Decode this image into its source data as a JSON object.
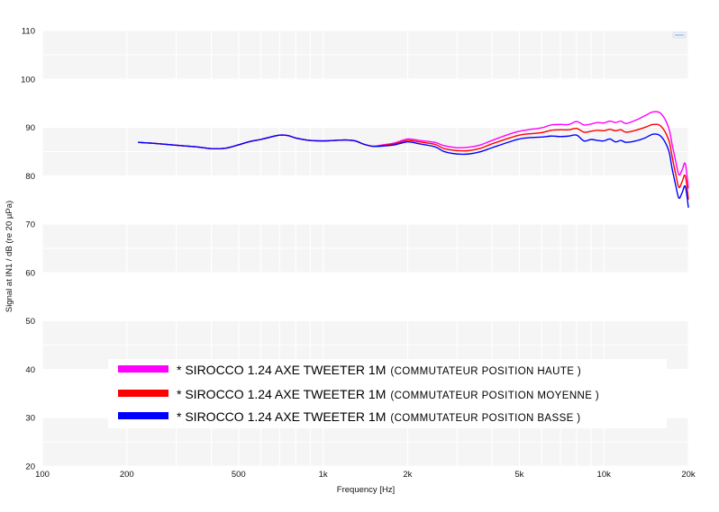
{
  "chart_data": {
    "type": "line",
    "title": "",
    "xlabel": "Frequency [Hz]",
    "ylabel": "Signal at IN1 / dB (re 20 µPa)",
    "xscale": "log",
    "xlim": [
      100,
      20000
    ],
    "ylim": [
      20,
      110
    ],
    "grid": true,
    "legend_position": "bottom-center",
    "x_ticks": [
      {
        "value": 100,
        "label": "100"
      },
      {
        "value": 200,
        "label": "200"
      },
      {
        "value": 500,
        "label": "500"
      },
      {
        "value": 1000,
        "label": "1k"
      },
      {
        "value": 2000,
        "label": "2k"
      },
      {
        "value": 5000,
        "label": "5k"
      },
      {
        "value": 10000,
        "label": "10k"
      },
      {
        "value": 20000,
        "label": "20k"
      }
    ],
    "y_ticks": [
      {
        "value": 20,
        "label": "20"
      },
      {
        "value": 30,
        "label": "30"
      },
      {
        "value": 40,
        "label": "40"
      },
      {
        "value": 50,
        "label": "50"
      },
      {
        "value": 60,
        "label": "60"
      },
      {
        "value": 70,
        "label": "70"
      },
      {
        "value": 80,
        "label": "80"
      },
      {
        "value": 90,
        "label": "90"
      },
      {
        "value": 100,
        "label": "100"
      },
      {
        "value": 110,
        "label": "110"
      }
    ],
    "series": [
      {
        "name": "* SIROCCO 1.24 AXE TWEETER 1M",
        "note": "(COMMUTATEUR POSITION HAUTE )",
        "color": "#ff00ff",
        "points": [
          [
            220,
            86.9
          ],
          [
            250,
            86.7
          ],
          [
            300,
            86.3
          ],
          [
            350,
            86.0
          ],
          [
            400,
            85.6
          ],
          [
            450,
            85.7
          ],
          [
            500,
            86.4
          ],
          [
            550,
            87.1
          ],
          [
            600,
            87.5
          ],
          [
            650,
            88.0
          ],
          [
            700,
            88.4
          ],
          [
            750,
            88.3
          ],
          [
            800,
            87.8
          ],
          [
            900,
            87.3
          ],
          [
            1000,
            87.2
          ],
          [
            1100,
            87.3
          ],
          [
            1200,
            87.4
          ],
          [
            1300,
            87.2
          ],
          [
            1400,
            86.5
          ],
          [
            1500,
            86.1
          ],
          [
            1600,
            86.3
          ],
          [
            1800,
            86.8
          ],
          [
            2000,
            87.6
          ],
          [
            2200,
            87.3
          ],
          [
            2500,
            86.9
          ],
          [
            2700,
            86.2
          ],
          [
            3000,
            85.8
          ],
          [
            3300,
            85.9
          ],
          [
            3600,
            86.3
          ],
          [
            4000,
            87.3
          ],
          [
            4500,
            88.4
          ],
          [
            5000,
            89.2
          ],
          [
            5500,
            89.6
          ],
          [
            6000,
            89.9
          ],
          [
            6500,
            90.5
          ],
          [
            7000,
            90.6
          ],
          [
            7500,
            90.6
          ],
          [
            8000,
            91.2
          ],
          [
            8500,
            90.5
          ],
          [
            9000,
            90.7
          ],
          [
            9500,
            91.0
          ],
          [
            10000,
            90.9
          ],
          [
            10500,
            91.3
          ],
          [
            11000,
            91.0
          ],
          [
            11500,
            91.3
          ],
          [
            12000,
            90.8
          ],
          [
            13000,
            91.5
          ],
          [
            14000,
            92.4
          ],
          [
            15000,
            93.2
          ],
          [
            16000,
            92.8
          ],
          [
            17000,
            90.0
          ],
          [
            17500,
            86.5
          ],
          [
            18000,
            83.2
          ],
          [
            18500,
            80.2
          ],
          [
            19000,
            81.2
          ],
          [
            19500,
            82.5
          ],
          [
            20000,
            77.5
          ]
        ]
      },
      {
        "name": "* SIROCCO 1.24 AXE TWEETER 1M",
        "note": "(COMMUTATEUR POSITION MOYENNE )",
        "color": "#ff0000",
        "points": [
          [
            220,
            86.9
          ],
          [
            250,
            86.7
          ],
          [
            300,
            86.3
          ],
          [
            350,
            86.0
          ],
          [
            400,
            85.6
          ],
          [
            450,
            85.7
          ],
          [
            500,
            86.4
          ],
          [
            550,
            87.1
          ],
          [
            600,
            87.5
          ],
          [
            650,
            88.0
          ],
          [
            700,
            88.4
          ],
          [
            750,
            88.3
          ],
          [
            800,
            87.8
          ],
          [
            900,
            87.3
          ],
          [
            1000,
            87.2
          ],
          [
            1100,
            87.3
          ],
          [
            1200,
            87.4
          ],
          [
            1300,
            87.2
          ],
          [
            1400,
            86.5
          ],
          [
            1500,
            86.1
          ],
          [
            1600,
            86.2
          ],
          [
            1800,
            86.6
          ],
          [
            2000,
            87.3
          ],
          [
            2200,
            87.0
          ],
          [
            2500,
            86.5
          ],
          [
            2700,
            85.6
          ],
          [
            3000,
            85.2
          ],
          [
            3300,
            85.2
          ],
          [
            3600,
            85.6
          ],
          [
            4000,
            86.6
          ],
          [
            4500,
            87.6
          ],
          [
            5000,
            88.4
          ],
          [
            5500,
            88.7
          ],
          [
            6000,
            88.9
          ],
          [
            6500,
            89.4
          ],
          [
            7000,
            89.5
          ],
          [
            7500,
            89.5
          ],
          [
            8000,
            89.8
          ],
          [
            8500,
            89.0
          ],
          [
            9000,
            89.2
          ],
          [
            9500,
            89.4
          ],
          [
            10000,
            89.3
          ],
          [
            10500,
            89.6
          ],
          [
            11000,
            89.3
          ],
          [
            11500,
            89.5
          ],
          [
            12000,
            89.0
          ],
          [
            13000,
            89.4
          ],
          [
            14000,
            90.0
          ],
          [
            15000,
            90.6
          ],
          [
            16000,
            90.2
          ],
          [
            17000,
            87.5
          ],
          [
            17500,
            84.0
          ],
          [
            18000,
            80.5
          ],
          [
            18500,
            77.6
          ],
          [
            19000,
            78.8
          ],
          [
            19500,
            80.0
          ],
          [
            20000,
            75.2
          ]
        ]
      },
      {
        "name": "* SIROCCO 1.24 AXE TWEETER 1M",
        "note": "(COMMUTATEUR POSITION BASSE )",
        "color": "#0000ff",
        "points": [
          [
            220,
            86.9
          ],
          [
            250,
            86.7
          ],
          [
            300,
            86.3
          ],
          [
            350,
            86.0
          ],
          [
            400,
            85.6
          ],
          [
            450,
            85.7
          ],
          [
            500,
            86.4
          ],
          [
            550,
            87.1
          ],
          [
            600,
            87.5
          ],
          [
            650,
            88.0
          ],
          [
            700,
            88.4
          ],
          [
            750,
            88.3
          ],
          [
            800,
            87.8
          ],
          [
            900,
            87.3
          ],
          [
            1000,
            87.2
          ],
          [
            1100,
            87.3
          ],
          [
            1200,
            87.4
          ],
          [
            1300,
            87.2
          ],
          [
            1400,
            86.5
          ],
          [
            1500,
            86.1
          ],
          [
            1600,
            86.1
          ],
          [
            1800,
            86.4
          ],
          [
            2000,
            87.0
          ],
          [
            2200,
            86.6
          ],
          [
            2500,
            86.0
          ],
          [
            2700,
            85.0
          ],
          [
            3000,
            84.5
          ],
          [
            3300,
            84.5
          ],
          [
            3600,
            84.9
          ],
          [
            4000,
            85.8
          ],
          [
            4500,
            86.8
          ],
          [
            5000,
            87.6
          ],
          [
            5500,
            87.9
          ],
          [
            6000,
            88.0
          ],
          [
            6500,
            88.2
          ],
          [
            7000,
            88.1
          ],
          [
            7500,
            88.2
          ],
          [
            8000,
            88.4
          ],
          [
            8500,
            87.2
          ],
          [
            9000,
            87.5
          ],
          [
            9500,
            87.3
          ],
          [
            10000,
            87.2
          ],
          [
            10500,
            87.6
          ],
          [
            11000,
            87.0
          ],
          [
            11500,
            87.3
          ],
          [
            12000,
            86.9
          ],
          [
            13000,
            87.2
          ],
          [
            14000,
            87.8
          ],
          [
            15000,
            88.6
          ],
          [
            16000,
            88.1
          ],
          [
            17000,
            85.3
          ],
          [
            17500,
            81.5
          ],
          [
            18000,
            78.2
          ],
          [
            18500,
            75.4
          ],
          [
            19000,
            76.5
          ],
          [
            19500,
            77.8
          ],
          [
            20000,
            73.5
          ]
        ]
      }
    ]
  }
}
